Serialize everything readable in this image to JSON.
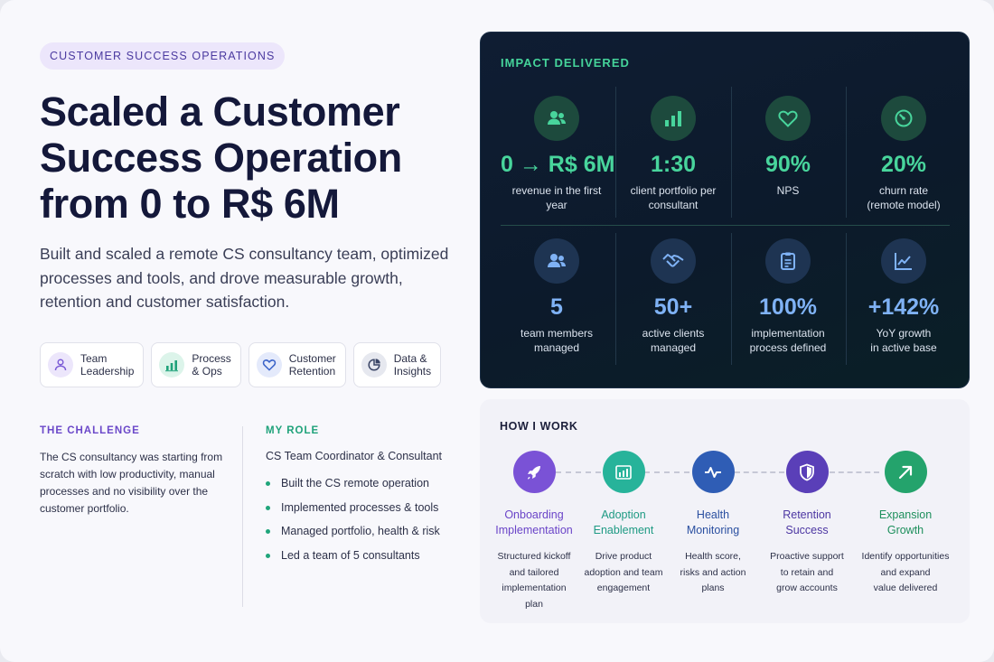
{
  "header": {
    "tag": "CUSTOMER SUCCESS OPERATIONS",
    "title": "Scaled a Customer Success Operation from 0 to R$ 6M",
    "subtitle": "Built and scaled a remote CS consultancy team, optimized processes and tools, and drove measurable growth, retention and customer satisfaction."
  },
  "chips": [
    {
      "label": "Team\nLeadership",
      "icon": "users-icon",
      "color": "#7b5bd6"
    },
    {
      "label": "Process\n& Ops",
      "icon": "bar-chart-icon",
      "color": "#1fa27a"
    },
    {
      "label": "Customer\nRetention",
      "icon": "heart-icon",
      "color": "#3a63c9"
    },
    {
      "label": "Data &\nInsights",
      "icon": "pie-chart-icon",
      "color": "#3a4566"
    }
  ],
  "challenge": {
    "label": "THE CHALLENGE",
    "text": "The CS consultancy was starting from scratch with low productivity, manual processes and no visibility over the customer portfolio."
  },
  "role": {
    "label": "MY ROLE",
    "title": "CS Team Coordinator & Consultant",
    "items": [
      "Built the CS remote operation",
      "Implemented processes & tools",
      "Managed portfolio, health & risk",
      "Led a team of 5 consultants"
    ]
  },
  "impact": {
    "title": "IMPACT DELIVERED",
    "metrics": [
      {
        "value": "0 → R$ 6M",
        "label": "revenue in the first year",
        "icon": "users-icon",
        "tone": "green"
      },
      {
        "value": "1:30",
        "label": "client portfolio per\nconsultant",
        "icon": "bar-chart-icon",
        "tone": "green"
      },
      {
        "value": "90%",
        "label": "NPS",
        "icon": "heart-icon",
        "tone": "green"
      },
      {
        "value": "20%",
        "label": "churn rate\n(remote model)",
        "icon": "gauge-icon",
        "tone": "green"
      },
      {
        "value": "5",
        "label": "team members\nmanaged",
        "icon": "users-icon",
        "tone": "blue"
      },
      {
        "value": "50+",
        "label": "active clients\nmanaged",
        "icon": "handshake-icon",
        "tone": "blue"
      },
      {
        "value": "100%",
        "label": "implementation\nprocess defined",
        "icon": "clipboard-icon",
        "tone": "blue"
      },
      {
        "value": "+142%",
        "label": "YoY growth\nin active base",
        "icon": "trend-line-icon",
        "tone": "blue"
      }
    ]
  },
  "how": {
    "title": "HOW I WORK",
    "steps": [
      {
        "title": "Onboarding\nImplementation",
        "desc": "Structured kickoff\nand tailored\nimplementation\nplan",
        "icon": "rocket-icon",
        "color": "#7a52d6",
        "title_color": "#6a44c8"
      },
      {
        "title": "Adoption\nEnablement",
        "desc": "Drive product\nadoption and team\nengagement",
        "icon": "growth-chart-icon",
        "color": "#27b39a",
        "title_color": "#1e9a83"
      },
      {
        "title": "Health\nMonitoring",
        "desc": "Health score,\nrisks and action\nplans",
        "icon": "pulse-icon",
        "color": "#2f5db5",
        "title_color": "#2a4fa0"
      },
      {
        "title": "Retention\nSuccess",
        "desc": "Proactive support\nto retain and\ngrow accounts",
        "icon": "shield-icon",
        "color": "#5a3fb8",
        "title_color": "#4c36a2"
      },
      {
        "title": "Expansion\nGrowth",
        "desc": "Identify opportunities\nand expand\nvalue delivered",
        "icon": "arrow-up-right-icon",
        "color": "#24a36c",
        "title_color": "#1d8f5c"
      }
    ]
  }
}
